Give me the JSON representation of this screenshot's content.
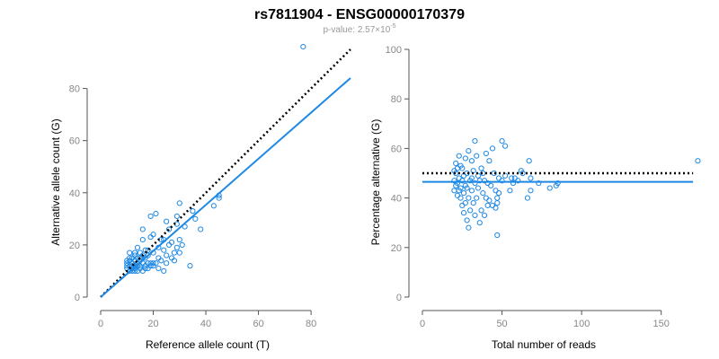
{
  "header": {
    "title": "rs7811904 - ENSG00000170379",
    "subtitle_prefix": "p-value: 2.57×10",
    "subtitle_exp": "-5"
  },
  "colors": {
    "accent": "#1e88e5",
    "point": "#1e88e5",
    "reference_line": "#000000",
    "tick_text": "#888888"
  },
  "chart_data": [
    {
      "type": "scatter",
      "title": "",
      "xlabel": "Reference allele count (T)",
      "ylabel": "Alternative allele count (G)",
      "xlim": [
        0,
        95
      ],
      "ylim": [
        0,
        95
      ],
      "xticks": [
        0,
        20,
        40,
        60,
        80
      ],
      "yticks": [
        0,
        20,
        40,
        60,
        80
      ],
      "grid": false,
      "lines": [
        {
          "style": "dotted",
          "color": "#000000",
          "x": [
            0,
            95
          ],
          "y": [
            0,
            95
          ]
        },
        {
          "style": "solid",
          "color": "#1e88e5",
          "x": [
            0,
            95
          ],
          "y": [
            0,
            84
          ]
        }
      ],
      "points": [
        [
          77,
          96
        ],
        [
          45,
          39
        ],
        [
          45,
          38
        ],
        [
          43,
          35
        ],
        [
          38,
          26
        ],
        [
          35,
          33
        ],
        [
          34,
          12
        ],
        [
          30,
          36
        ],
        [
          29,
          31
        ],
        [
          29,
          28
        ],
        [
          30,
          22
        ],
        [
          29,
          19
        ],
        [
          28,
          17
        ],
        [
          27,
          21
        ],
        [
          26,
          20
        ],
        [
          25,
          13
        ],
        [
          24,
          10
        ],
        [
          24,
          18
        ],
        [
          23,
          22
        ],
        [
          22,
          15
        ],
        [
          21,
          32
        ],
        [
          20,
          12
        ],
        [
          20,
          24
        ],
        [
          19,
          31
        ],
        [
          19,
          13
        ],
        [
          18,
          18
        ],
        [
          17,
          15
        ],
        [
          17,
          12
        ],
        [
          16,
          26
        ],
        [
          16,
          22
        ],
        [
          16,
          16
        ],
        [
          16,
          13
        ],
        [
          15,
          14
        ],
        [
          15,
          11
        ],
        [
          14,
          19
        ],
        [
          14,
          12
        ],
        [
          14,
          15
        ],
        [
          13,
          17
        ],
        [
          13,
          12
        ],
        [
          13,
          14
        ],
        [
          13,
          10
        ],
        [
          12,
          11
        ],
        [
          12,
          13
        ],
        [
          12,
          15
        ],
        [
          11,
          17
        ],
        [
          11,
          12
        ],
        [
          11,
          10
        ],
        [
          10,
          11
        ],
        [
          10,
          13
        ],
        [
          10,
          14
        ],
        [
          11,
          15
        ],
        [
          12,
          10
        ],
        [
          13,
          11
        ],
        [
          14,
          10
        ],
        [
          15,
          12
        ],
        [
          16,
          10
        ],
        [
          17,
          11
        ],
        [
          18,
          13
        ],
        [
          19,
          12
        ],
        [
          20,
          13
        ],
        [
          18,
          16
        ],
        [
          21,
          13
        ],
        [
          22,
          11
        ],
        [
          23,
          14
        ],
        [
          19,
          23
        ],
        [
          26,
          26
        ],
        [
          27,
          15
        ],
        [
          25,
          16
        ],
        [
          30,
          17
        ],
        [
          32,
          27
        ],
        [
          36,
          30
        ],
        [
          20,
          17
        ],
        [
          12,
          12
        ],
        [
          15,
          17
        ],
        [
          17,
          18
        ],
        [
          14,
          13
        ],
        [
          10,
          12
        ],
        [
          11,
          14
        ],
        [
          22,
          19
        ],
        [
          25,
          29
        ],
        [
          24,
          22
        ],
        [
          28,
          14
        ],
        [
          31,
          20
        ],
        [
          15,
          15
        ],
        [
          13,
          16
        ],
        [
          18,
          11
        ]
      ]
    },
    {
      "type": "scatter",
      "title": "",
      "xlabel": "Total number of reads",
      "ylabel": "Percentage alternative (G)",
      "xlim": [
        0,
        175
      ],
      "ylim": [
        0,
        100
      ],
      "xticks": [
        0,
        50,
        100,
        150
      ],
      "yticks": [
        0,
        20,
        40,
        60,
        80,
        100
      ],
      "grid": false,
      "lines": [
        {
          "style": "dotted",
          "color": "#000000",
          "x": [
            0,
            170
          ],
          "y": [
            50,
            50
          ]
        },
        {
          "style": "solid",
          "color": "#1e88e5",
          "x": [
            0,
            170
          ],
          "y": [
            46.5,
            46.5
          ]
        }
      ],
      "points": [
        [
          173,
          55
        ],
        [
          85,
          46
        ],
        [
          84,
          45
        ],
        [
          80,
          44
        ],
        [
          73,
          46
        ],
        [
          68,
          48
        ],
        [
          68,
          43
        ],
        [
          67,
          55
        ],
        [
          66,
          40
        ],
        [
          63,
          50
        ],
        [
          62,
          51
        ],
        [
          60,
          47
        ],
        [
          58,
          48
        ],
        [
          57,
          46
        ],
        [
          56,
          48
        ],
        [
          55,
          43
        ],
        [
          52,
          49
        ],
        [
          52,
          61
        ],
        [
          50,
          47
        ],
        [
          50,
          63
        ],
        [
          48,
          48
        ],
        [
          48,
          42
        ],
        [
          47,
          38
        ],
        [
          47,
          25
        ],
        [
          47,
          40
        ],
        [
          46,
          36
        ],
        [
          46,
          43
        ],
        [
          45,
          50
        ],
        [
          44,
          60
        ],
        [
          44,
          37
        ],
        [
          43,
          45
        ],
        [
          42,
          55
        ],
        [
          42,
          39
        ],
        [
          41,
          46
        ],
        [
          41,
          37
        ],
        [
          40,
          40
        ],
        [
          40,
          58
        ],
        [
          39,
          47
        ],
        [
          39,
          33
        ],
        [
          38,
          50
        ],
        [
          38,
          42
        ],
        [
          37,
          52
        ],
        [
          37,
          35
        ],
        [
          36,
          30
        ],
        [
          35,
          49
        ],
        [
          35,
          44
        ],
        [
          34,
          40
        ],
        [
          34,
          57
        ],
        [
          33,
          46
        ],
        [
          33,
          33
        ],
        [
          32,
          51
        ],
        [
          32,
          38
        ],
        [
          31,
          55
        ],
        [
          31,
          43
        ],
        [
          30,
          47
        ],
        [
          30,
          35
        ],
        [
          29,
          59
        ],
        [
          29,
          40
        ],
        [
          28,
          50
        ],
        [
          28,
          31
        ],
        [
          27,
          45
        ],
        [
          27,
          38
        ],
        [
          27,
          56
        ],
        [
          26,
          42
        ],
        [
          26,
          49
        ],
        [
          26,
          34
        ],
        [
          25,
          47
        ],
        [
          25,
          52
        ],
        [
          25,
          37
        ],
        [
          24,
          44
        ],
        [
          24,
          53
        ],
        [
          24,
          40
        ],
        [
          23,
          48
        ],
        [
          23,
          57
        ],
        [
          23,
          43
        ],
        [
          22,
          46
        ],
        [
          22,
          52
        ],
        [
          22,
          41
        ],
        [
          21,
          50
        ],
        [
          21,
          54
        ],
        [
          21,
          45
        ],
        [
          20,
          47
        ],
        [
          20,
          51
        ],
        [
          20,
          43
        ],
        [
          29,
          28
        ],
        [
          33,
          63
        ],
        [
          36,
          47
        ],
        [
          31,
          48
        ],
        [
          28,
          44
        ]
      ]
    }
  ]
}
